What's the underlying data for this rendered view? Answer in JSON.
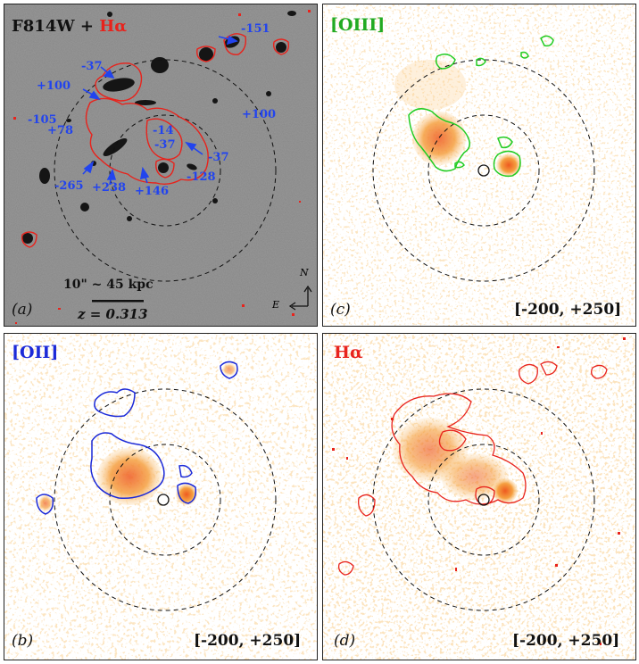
{
  "panels": {
    "a": {
      "title_base": "F814W + ",
      "title_accent": "Hα",
      "scale_text": "10\" ~ 45 kpc",
      "redshift": "z = 0.313",
      "label": "(a)",
      "compass_n": "N",
      "compass_e": "E",
      "velocities": [
        "-151",
        "-37",
        "+100",
        "-105",
        "+78",
        "+100",
        "-14",
        "-37",
        "-37",
        "-128",
        "-265",
        "+238",
        "+146"
      ]
    },
    "b": {
      "title": "[OII]",
      "label": "(b)",
      "range": "[-200, +250]"
    },
    "c": {
      "title": "[OIII]",
      "label": "(c)",
      "range": "[-200, +250]"
    },
    "d": {
      "title": "Hα",
      "label": "(d)",
      "range": "[-200, +250]"
    }
  },
  "colors": {
    "halpha": "#e8231c",
    "oiii": "#22cc22",
    "oii": "#1c2ad8",
    "velocity_text": "#2244ee",
    "emission": "#f5a040"
  }
}
